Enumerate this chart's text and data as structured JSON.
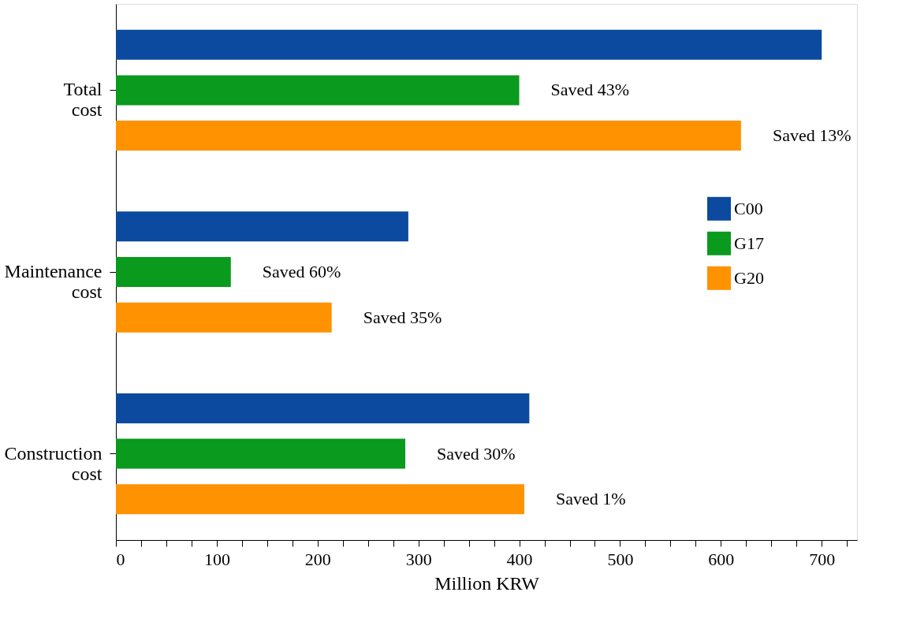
{
  "chart_data": {
    "type": "bar",
    "orientation": "horizontal",
    "xlabel": "Million KRW",
    "categories": [
      "Total cost",
      "Maintenance cost",
      "Construction cost"
    ],
    "series": [
      {
        "name": "C00",
        "color": "#0b4a9e",
        "values": [
          700,
          290,
          410
        ]
      },
      {
        "name": "G17",
        "color": "#0a9a1e",
        "values": [
          400,
          114,
          287
        ],
        "value_labels": [
          "Saved 43%",
          "Saved 60%",
          "Saved 30%"
        ]
      },
      {
        "name": "G20",
        "color": "#ff9200",
        "values": [
          620,
          214,
          405
        ],
        "value_labels": [
          "Saved 13%",
          "Saved 35%",
          "Saved 1%"
        ]
      }
    ],
    "xlim": [
      0,
      735
    ],
    "xticks": [
      0,
      {
        "value": 25,
        "label": null
      },
      {
        "value": 50,
        "label": null
      },
      {
        "value": 75,
        "label": null
      },
      100,
      {
        "value": 125,
        "label": null
      },
      {
        "value": 150,
        "label": null
      },
      {
        "value": 175,
        "label": null
      },
      200,
      {
        "value": 225,
        "label": null
      },
      {
        "value": 250,
        "label": null
      },
      {
        "value": 275,
        "label": null
      },
      300,
      {
        "value": 325,
        "label": null
      },
      {
        "value": 350,
        "label": null
      },
      {
        "value": 375,
        "label": null
      },
      400,
      {
        "value": 425,
        "label": null
      },
      {
        "value": 450,
        "label": null
      },
      {
        "value": 475,
        "label": null
      },
      500,
      {
        "value": 525,
        "label": null
      },
      {
        "value": 550,
        "label": null
      },
      {
        "value": 575,
        "label": null
      },
      600,
      {
        "value": 625,
        "label": null
      },
      {
        "value": 650,
        "label": null
      },
      {
        "value": 675,
        "label": null
      },
      700,
      {
        "value": 725,
        "label": null
      }
    ],
    "legend": "right",
    "grid": false
  }
}
